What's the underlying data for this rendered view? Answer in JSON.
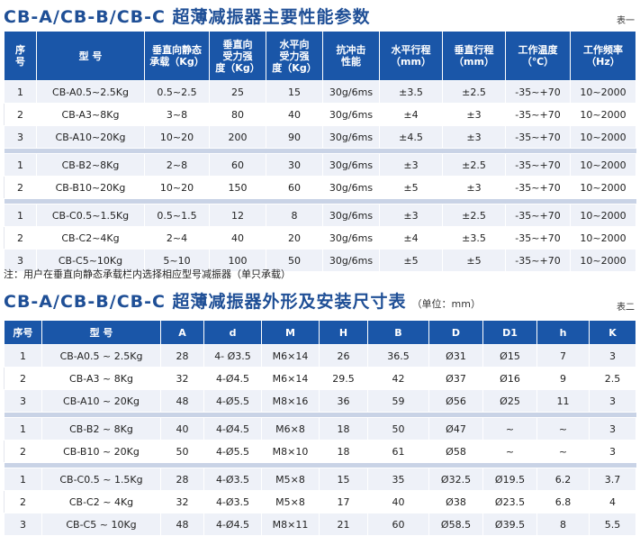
{
  "table1": {
    "title": "CB-A/CB-B/CB-C 超薄减振器主要性能参数",
    "tag": "表一",
    "headers": [
      "序\n号",
      "型  号",
      "垂直向静态\n承载（Kg）",
      "垂直向\n受力强\n度（Kg）",
      "水平向\n受力强\n度（Kg）",
      "抗冲击\n性能",
      "水平行程\n（mm）",
      "垂直行程\n（mm）",
      "工作温度\n（℃）",
      "工作频率\n（Hz）"
    ],
    "groups": [
      [
        [
          "1",
          "CB-A0.5~2.5Kg",
          "0.5~2.5",
          "25",
          "15",
          "30g/6ms",
          "±3.5",
          "±2.5",
          "-35~+70",
          "10~2000"
        ],
        [
          "2",
          "CB-A3~8Kg",
          "3~8",
          "80",
          "40",
          "30g/6ms",
          "±4",
          "±3",
          "-35~+70",
          "10~2000"
        ],
        [
          "3",
          "CB-A10~20Kg",
          "10~20",
          "200",
          "90",
          "30g/6ms",
          "±4.5",
          "±3",
          "-35~+70",
          "10~2000"
        ]
      ],
      [
        [
          "1",
          "CB-B2~8Kg",
          "2~8",
          "60",
          "30",
          "30g/6ms",
          "±3",
          "±2.5",
          "-35~+70",
          "10~2000"
        ],
        [
          "2",
          "CB-B10~20Kg",
          "10~20",
          "150",
          "60",
          "30g/6ms",
          "±5",
          "±3",
          "-35~+70",
          "10~2000"
        ]
      ],
      [
        [
          "1",
          "CB-C0.5~1.5Kg",
          "0.5~1.5",
          "12",
          "8",
          "30g/6ms",
          "±3",
          "±2.5",
          "-35~+70",
          "10~2000"
        ],
        [
          "2",
          "CB-C2~4Kg",
          "2~4",
          "40",
          "20",
          "30g/6ms",
          "±4",
          "±3.5",
          "-35~+70",
          "10~2000"
        ],
        [
          "3",
          "CB-C5~10Kg",
          "5~10",
          "100",
          "50",
          "30g/6ms",
          "±5",
          "±5",
          "-35~+70",
          "10~2000"
        ]
      ]
    ]
  },
  "note": "注：用户在垂直向静态承载栏内选择相应型号减振器（单只承载）",
  "table2": {
    "title": "CB-A/CB-B/CB-C 超薄减振器外形及安装尺寸表",
    "unit": "（单位：mm）",
    "tag": "表二",
    "headers": [
      "序号",
      "型  号",
      "A",
      "d",
      "M",
      "H",
      "B",
      "D",
      "D1",
      "h",
      "K"
    ],
    "groups": [
      [
        [
          "1",
          "CB-A0.5 ~ 2.5Kg",
          "28",
          "4- Ø3.5",
          "M6×14",
          "26",
          "36.5",
          "Ø31",
          "Ø15",
          "7",
          "3"
        ],
        [
          "2",
          "CB-A3 ~ 8Kg",
          "32",
          "4-Ø4.5",
          "M6×14",
          "29.5",
          "42",
          "Ø37",
          "Ø16",
          "9",
          "2.5"
        ],
        [
          "3",
          "CB-A10 ~ 20Kg",
          "48",
          "4-Ø5.5",
          "M8×16",
          "36",
          "59",
          "Ø56",
          "Ø25",
          "11",
          "3"
        ]
      ],
      [
        [
          "1",
          "CB-B2 ~ 8Kg",
          "40",
          "4-Ø4.5",
          "M6×8",
          "18",
          "50",
          "Ø47",
          "~",
          "~",
          "3"
        ],
        [
          "2",
          "CB-B10 ~ 20Kg",
          "50",
          "4-Ø5.5",
          "M8×10",
          "18",
          "61",
          "Ø58",
          "~",
          "~",
          "3"
        ]
      ],
      [
        [
          "1",
          "CB-C0.5 ~ 1.5Kg",
          "28",
          "4-Ø3.5",
          "M5×8",
          "15",
          "35",
          "Ø32.5",
          "Ø19.5",
          "6.2",
          "3.7"
        ],
        [
          "2",
          "CB-C2 ~ 4Kg",
          "32",
          "4-Ø3.5",
          "M5×8",
          "17",
          "40",
          "Ø38",
          "Ø23.5",
          "6.8",
          "4"
        ],
        [
          "3",
          "CB-C5 ~ 10Kg",
          "48",
          "4-Ø4.5",
          "M8×11",
          "21",
          "60",
          "Ø58.5",
          "Ø39.5",
          "8",
          "5.5"
        ]
      ]
    ]
  }
}
